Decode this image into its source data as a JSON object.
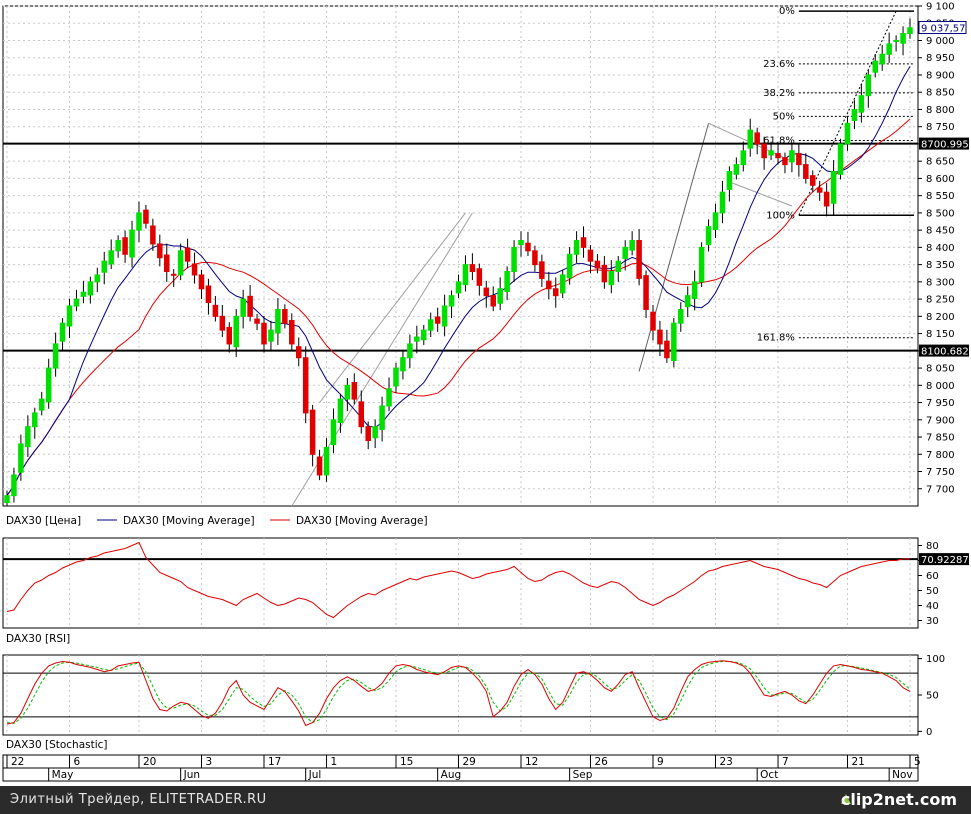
{
  "colors": {
    "up": "#00e000",
    "down": "#e00000",
    "ma_fast": "#000080",
    "ma_slow": "#e00000",
    "grid": "#c8c8c8",
    "fib": "#000000",
    "channel": "#a0a0a0",
    "footer_bg": "#2b2b2b",
    "osc": "#e00000",
    "stoch_signal": "#00c000"
  },
  "chart_data": [
    {
      "type": "candlestick",
      "title": "DAX30",
      "ylim": [
        7650,
        9100
      ],
      "grid": true,
      "y_ticks": [
        "9 100",
        "9 050",
        "9 000",
        "8 950",
        "8 900",
        "8 850",
        "8 800",
        "8 750",
        "8 700",
        "8 650",
        "8 600",
        "8 550",
        "8 500",
        "8 450",
        "8 400",
        "8 350",
        "8 300",
        "8 250",
        "8 200",
        "8 150",
        "8 100",
        "8 050",
        "8 000",
        "7 950",
        "7 900",
        "7 850",
        "7 800",
        "7 750",
        "7 700"
      ],
      "current_price_label": "9 037,57",
      "current_price": 9037.57,
      "horizontal_levels": [
        {
          "label": "8700.995",
          "value": 8700.995
        },
        {
          "label": "8100.682",
          "value": 8100.682
        }
      ],
      "fib_levels": [
        {
          "label": "0%",
          "value": 9085
        },
        {
          "label": "23.6%",
          "value": 8932
        },
        {
          "label": "38.2%",
          "value": 8848
        },
        {
          "label": "50%",
          "value": 8780
        },
        {
          "label": "61.8%",
          "value": 8710
        },
        {
          "label": "100%",
          "value": 8493
        },
        {
          "label": "161.8%",
          "value": 8138
        }
      ],
      "x_day_ticks": [
        "22",
        "6",
        "20",
        "3",
        "17",
        "1",
        "15",
        "29",
        "12",
        "26",
        "9",
        "23",
        "7",
        "21",
        "5"
      ],
      "x_month_ticks": [
        "May",
        "Jun",
        "Jul",
        "Aug",
        "Sep",
        "Oct",
        "Nov"
      ],
      "legend": [
        {
          "name": "DAX30 [Цена]"
        },
        {
          "name": "DAX30 [Moving Average]"
        },
        {
          "name": "DAX30 [Moving Average]"
        }
      ],
      "closes": [
        7680,
        7740,
        7830,
        7880,
        7920,
        7960,
        8050,
        8120,
        8180,
        8230,
        8250,
        8270,
        8300,
        8320,
        8360,
        8390,
        8420,
        8380,
        8450,
        8500,
        8470,
        8410,
        8370,
        8330,
        8320,
        8390,
        8360,
        8320,
        8280,
        8240,
        8200,
        8160,
        8120,
        8200,
        8250,
        8200,
        8180,
        8120,
        8160,
        8220,
        8180,
        8120,
        8080,
        7920,
        7800,
        7740,
        7820,
        7900,
        7960,
        8000,
        7960,
        7880,
        7840,
        7880,
        7940,
        7990,
        8050,
        8080,
        8120,
        8140,
        8160,
        8190,
        8180,
        8230,
        8260,
        8300,
        8350,
        8330,
        8290,
        8260,
        8230,
        8280,
        8330,
        8400,
        8420,
        8390,
        8350,
        8310,
        8280,
        8260,
        8320,
        8380,
        8420,
        8400,
        8360,
        8340,
        8300,
        8330,
        8360,
        8400,
        8420,
        8310,
        8220,
        8160,
        8120,
        8080,
        8180,
        8220,
        8260,
        8300,
        8400,
        8460,
        8500,
        8560,
        8620,
        8640,
        8680,
        8740,
        8700,
        8660,
        8680,
        8660,
        8640,
        8680,
        8640,
        8600,
        8580,
        8560,
        8520,
        8620,
        8700,
        8760,
        8800,
        8840,
        8900,
        8940,
        8960,
        8990,
        9000,
        9020,
        9037
      ]
    },
    {
      "type": "line",
      "title": "DAX30 [RSI]",
      "ylim": [
        25,
        85
      ],
      "y_ticks": [
        "80",
        "70",
        "60",
        "50",
        "40",
        "30"
      ],
      "current_label": "70.92287",
      "current_value": 70.92287,
      "values": [
        36,
        37,
        44,
        50,
        55,
        57,
        60,
        62,
        65,
        67,
        69,
        70,
        72,
        73,
        75,
        76,
        77,
        78,
        80,
        82,
        72,
        67,
        62,
        60,
        58,
        56,
        52,
        50,
        48,
        46,
        45,
        44,
        42,
        40,
        44,
        46,
        48,
        45,
        42,
        40,
        41,
        43,
        45,
        44,
        42,
        38,
        34,
        32,
        36,
        40,
        43,
        46,
        48,
        47,
        50,
        52,
        54,
        56,
        58,
        57,
        59,
        60,
        61,
        62,
        63,
        62,
        60,
        58,
        59,
        61,
        62,
        63,
        64,
        66,
        62,
        58,
        56,
        57,
        60,
        62,
        63,
        61,
        58,
        55,
        53,
        52,
        54,
        56,
        55,
        52,
        48,
        44,
        42,
        40,
        42,
        45,
        47,
        50,
        53,
        56,
        60,
        63,
        64,
        66,
        67,
        68,
        69,
        70,
        68,
        66,
        65,
        64,
        62,
        60,
        58,
        57,
        55,
        54,
        52,
        56,
        60,
        62,
        64,
        66,
        67,
        68,
        69,
        70,
        70,
        71,
        71
      ]
    },
    {
      "type": "line",
      "title": "DAX30 [Stochastic]",
      "ylim": [
        -5,
        105
      ],
      "y_ticks": [
        "100",
        "50",
        "0"
      ],
      "series": [
        {
          "values": [
            10,
            12,
            25,
            45,
            65,
            80,
            90,
            94,
            96,
            95,
            92,
            90,
            88,
            85,
            82,
            84,
            90,
            92,
            94,
            95,
            70,
            45,
            30,
            28,
            35,
            40,
            38,
            30,
            22,
            18,
            25,
            40,
            60,
            70,
            50,
            40,
            35,
            30,
            45,
            60,
            55,
            42,
            28,
            8,
            12,
            25,
            45,
            60,
            70,
            75,
            70,
            62,
            55,
            58,
            66,
            80,
            90,
            92,
            90,
            85,
            82,
            80,
            78,
            82,
            88,
            90,
            88,
            80,
            70,
            55,
            20,
            28,
            40,
            62,
            78,
            85,
            78,
            65,
            45,
            30,
            40,
            60,
            80,
            82,
            78,
            70,
            60,
            55,
            65,
            78,
            82,
            60,
            40,
            20,
            15,
            18,
            32,
            55,
            75,
            85,
            92,
            95,
            96,
            97,
            96,
            94,
            90,
            80,
            65,
            50,
            48,
            52,
            55,
            50,
            42,
            38,
            50,
            65,
            80,
            90,
            92,
            90,
            88,
            85,
            84,
            82,
            80,
            75,
            70,
            60,
            55
          ]
        },
        {
          "values": [
            12,
            11,
            18,
            32,
            50,
            68,
            82,
            90,
            94,
            95,
            94,
            92,
            90,
            88,
            85,
            84,
            86,
            89,
            92,
            94,
            82,
            62,
            42,
            32,
            32,
            36,
            38,
            35,
            28,
            22,
            22,
            30,
            45,
            60,
            58,
            48,
            40,
            34,
            38,
            50,
            56,
            50,
            38,
            20,
            12,
            16,
            30,
            48,
            62,
            70,
            72,
            67,
            60,
            56,
            60,
            70,
            82,
            88,
            90,
            88,
            85,
            82,
            80,
            80,
            84,
            88,
            89,
            84,
            76,
            62,
            40,
            28,
            34,
            50,
            68,
            80,
            80,
            72,
            55,
            38,
            36,
            50,
            68,
            78,
            80,
            75,
            66,
            58,
            60,
            70,
            78,
            70,
            52,
            32,
            20,
            16,
            24,
            42,
            62,
            78,
            88,
            92,
            95,
            96,
            96,
            95,
            92,
            86,
            74,
            60,
            50,
            50,
            53,
            52,
            46,
            40,
            44,
            56,
            70,
            82,
            90,
            90,
            89,
            87,
            85,
            83,
            81,
            78,
            74,
            66,
            58
          ]
        }
      ],
      "levels": [
        80,
        20
      ]
    }
  ],
  "footer": {
    "left": "Элитный Трейдер, ELITETRADER.RU",
    "right": "clip2net.com"
  }
}
